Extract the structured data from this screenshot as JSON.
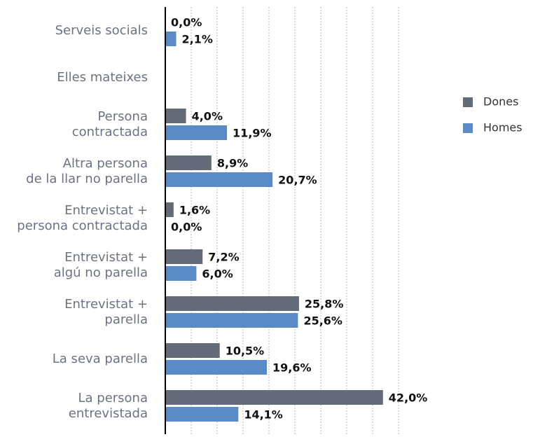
{
  "chart_data": {
    "type": "bar",
    "orientation": "horizontal",
    "categories": [
      "Serveis socials",
      "Elles mateixes",
      "Persona\ncontractada",
      "Altra persona\nde la llar no parella",
      "Entrevistat +\npersona contractada",
      "Entrevistat +\nalgú no parella",
      "Entrevistat +\nparella",
      "La seva parella",
      "La persona\nentrevistada"
    ],
    "series": [
      {
        "name": "Dones",
        "color": "#646b78",
        "values": [
          0.0,
          null,
          4.0,
          8.9,
          1.6,
          7.2,
          25.8,
          10.5,
          42.0
        ],
        "value_labels": [
          "0,0%",
          null,
          "4,0%",
          "8,9%",
          "1,6%",
          "7,2%",
          "25,8%",
          "10,5%",
          "42,0%"
        ]
      },
      {
        "name": "Homes",
        "color": "#5b8ac8",
        "values": [
          2.1,
          null,
          11.9,
          20.7,
          0.0,
          6.0,
          25.6,
          19.6,
          14.1
        ],
        "value_labels": [
          "2,1%",
          null,
          "11,9%",
          "20,7%",
          "0,0%",
          "6,0%",
          "25,6%",
          "19,6%",
          "14,1%"
        ]
      }
    ],
    "xlim": [
      0,
      45
    ],
    "xticks": [
      0,
      5,
      10,
      15,
      20,
      25,
      30,
      35,
      40,
      45
    ],
    "grid": true,
    "legend": "right"
  }
}
